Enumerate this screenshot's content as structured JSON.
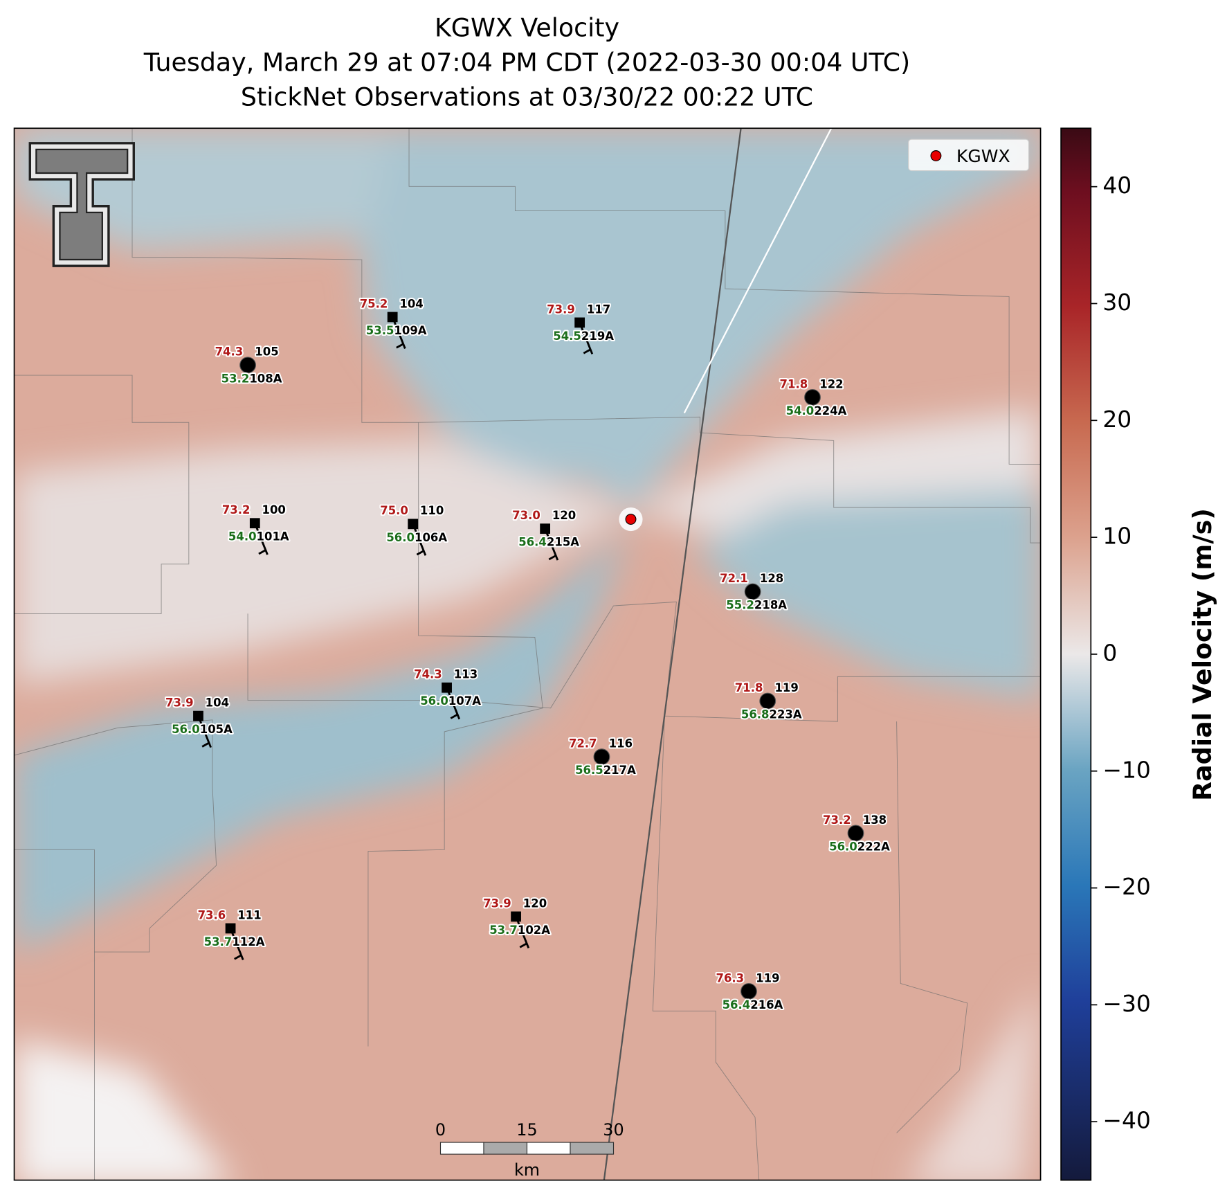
{
  "title": "KGWX Velocity",
  "subtitle": "Tuesday, March 29 at 07:04 PM CDT (2022-03-30 00:04 UTC)",
  "observation_time": "StickNet Observations at 03/30/22 00:22 UTC",
  "legend": {
    "label": "KGWX"
  },
  "colorbar": {
    "label": "Radial Velocity (m/s)",
    "clim": [
      -45,
      45
    ],
    "ticks": [
      {
        "value": -40,
        "label": "−40"
      },
      {
        "value": -30,
        "label": "−30"
      },
      {
        "value": -20,
        "label": "−20"
      },
      {
        "value": -10,
        "label": "−10"
      },
      0,
      10,
      20,
      30,
      40
    ]
  },
  "scale_bar": {
    "ticks": [
      0,
      15,
      30
    ],
    "unit": "km"
  },
  "stations": [
    {
      "temp": "74.3",
      "dewpoint": "53.2",
      "number": "105",
      "id": "108A"
    },
    {
      "temp": "75.2",
      "dewpoint": "53.5",
      "number": "104",
      "id": "109A"
    },
    {
      "temp": "73.9",
      "dewpoint": "54.5",
      "number": "117",
      "id": "219A"
    },
    {
      "temp": "71.8",
      "dewpoint": "54.0",
      "number": "122",
      "id": "224A"
    },
    {
      "temp": "73.2",
      "dewpoint": "54.0",
      "number": "100",
      "id": "101A"
    },
    {
      "temp": "75.0",
      "dewpoint": "56.0",
      "number": "110",
      "id": "106A"
    },
    {
      "temp": "73.0",
      "dewpoint": "56.4",
      "number": "120",
      "id": "215A"
    },
    {
      "temp": "72.1",
      "dewpoint": "55.2",
      "number": "128",
      "id": "218A"
    },
    {
      "temp": "74.3",
      "dewpoint": "56.0",
      "number": "113",
      "id": "107A"
    },
    {
      "temp": "73.9",
      "dewpoint": "56.0",
      "number": "104",
      "id": "105A"
    },
    {
      "temp": "71.8",
      "dewpoint": "56.8",
      "number": "119",
      "id": "223A"
    },
    {
      "temp": "72.7",
      "dewpoint": "56.5",
      "number": "116",
      "id": "217A"
    },
    {
      "temp": "73.2",
      "dewpoint": "56.0",
      "number": "138",
      "id": "222A"
    },
    {
      "temp": "73.6",
      "dewpoint": "53.7",
      "number": "111",
      "id": "112A"
    },
    {
      "temp": "73.9",
      "dewpoint": "53.7",
      "number": "120",
      "id": "102A"
    },
    {
      "temp": "76.3",
      "dewpoint": "56.4",
      "number": "119",
      "id": "216A"
    }
  ]
}
